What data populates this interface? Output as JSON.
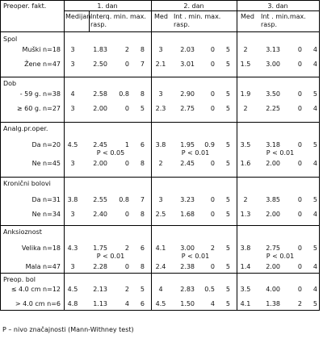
{
  "header": {
    "col0": "Preoper. fakt.",
    "day1": "1. dan",
    "day2": "2. dan",
    "day3": "3. dan",
    "d1_med": "Medijan",
    "d1_int": "Interq. min. max.",
    "d1_rasp": "rasp.",
    "d2_med": "Med",
    "d2_int": "Int . min. max.",
    "d2_rasp": "rasp.",
    "d3_med": "Med",
    "d3_int": "Int . min.max.",
    "d3_rasp": "rasp."
  },
  "groups": [
    {
      "title": "Spol",
      "rows": [
        {
          "label": "Muški n=18",
          "d1": [
            "3",
            "1.83",
            "2",
            "8"
          ],
          "d2": [
            "3",
            "2.03",
            "0",
            "5"
          ],
          "d3": [
            "2",
            "3.13",
            "0",
            "4"
          ]
        },
        {
          "label": "Žene n=47",
          "d1": [
            "3",
            "2.50",
            "0",
            "7"
          ],
          "d2": [
            "2.1",
            "3.01",
            "0",
            "5"
          ],
          "d3": [
            "1.5",
            "3.00",
            "0",
            "4"
          ]
        }
      ]
    },
    {
      "title": "Dob",
      "rows": [
        {
          "label": "- 59 g. n=38",
          "d1": [
            "4",
            "2.58",
            "0.8",
            "8"
          ],
          "d2": [
            "3",
            "2.90",
            "0",
            "5"
          ],
          "d3": [
            "1.9",
            "3.50",
            "0",
            "5"
          ]
        },
        {
          "label": "≥ 60 g. n=27",
          "d1": [
            "3",
            "2.00",
            "0",
            "5"
          ],
          "d2": [
            "2.3",
            "2.75",
            "0",
            "5"
          ],
          "d3": [
            "2",
            "2.25",
            "0",
            "4"
          ]
        }
      ]
    },
    {
      "title": "Analg.pr.oper.",
      "rows": [
        {
          "label": "Da n=20",
          "d1": [
            "4.5",
            "2.45",
            "1",
            "6"
          ],
          "d2": [
            "3.8",
            "1.95",
            "0.9",
            "5"
          ],
          "d3": [
            "3.5",
            "3.18",
            "0",
            "5"
          ]
        },
        {
          "label": "Ne n=45",
          "d1": [
            "3",
            "2.00",
            "0",
            "8"
          ],
          "d2": [
            "2",
            "2.45",
            "0",
            "5"
          ],
          "d3": [
            "1.6",
            "2.00",
            "0",
            "4"
          ]
        }
      ],
      "p": {
        "d1": "P < 0.05",
        "d2": "P < 0.01",
        "d3": "P < 0.01"
      }
    },
    {
      "title": "Kronični bolovi",
      "rows": [
        {
          "label": "Da n=31",
          "d1": [
            "3.8",
            "2.55",
            "0.8",
            "7"
          ],
          "d2": [
            "3",
            "3.23",
            "0",
            "5"
          ],
          "d3": [
            "2",
            "3.85",
            "0",
            "5"
          ]
        },
        {
          "label": "Ne n=34",
          "d1": [
            "3",
            "2.40",
            "0",
            "8"
          ],
          "d2": [
            "2.5",
            "1.68",
            "0",
            "5"
          ],
          "d3": [
            "1.3",
            "2.00",
            "0",
            "4"
          ]
        }
      ]
    },
    {
      "title": "Anksioznost",
      "rows": [
        {
          "label": "Velika n=18",
          "d1": [
            "4.3",
            "1.75",
            "2",
            "6"
          ],
          "d2": [
            "4.1",
            "3.00",
            "2",
            "5"
          ],
          "d3": [
            "3.8",
            "2.75",
            "0",
            "5"
          ]
        },
        {
          "label": "Mala n=47",
          "d1": [
            "3",
            "2.28",
            "0",
            "8"
          ],
          "d2": [
            "2.4",
            "2.38",
            "0",
            "5"
          ],
          "d3": [
            "1.4",
            "2.00",
            "0",
            "4"
          ]
        }
      ],
      "p": {
        "d1": "P < 0.01",
        "d2": "P < 0.01",
        "d3": "P < 0.01"
      }
    },
    {
      "title": "Preop. bol",
      "rows": [
        {
          "label": "≤ 4.0 cm n=12",
          "d1": [
            "4.5",
            "2.13",
            "2",
            "5"
          ],
          "d2": [
            "4",
            "2.83",
            "0.5",
            "5"
          ],
          "d3": [
            "3.5",
            "4.00",
            "0",
            "4"
          ]
        },
        {
          "label": "> 4.0 cm n=6",
          "d1": [
            "4.8",
            "1.13",
            "4",
            "6"
          ],
          "d2": [
            "4.5",
            "1.50",
            "4",
            "5"
          ],
          "d3": [
            "4.1",
            "1.38",
            "2",
            "5"
          ]
        }
      ]
    }
  ],
  "footnote": "P – nivo značajnosti (Mann-Withney test)"
}
